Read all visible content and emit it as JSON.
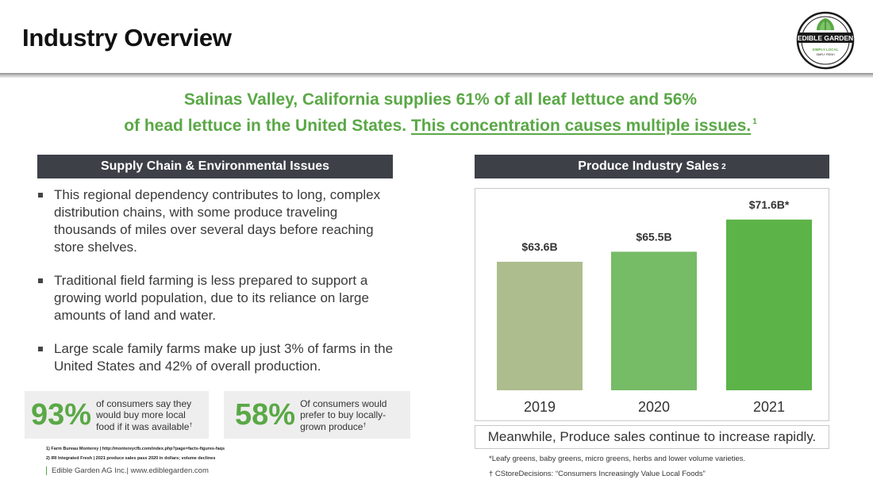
{
  "header": {
    "title": "Industry Overview",
    "logo": {
      "text": "EDIBLE GARDEN",
      "tagline": "SIMPLY LOCAL",
      "subtagline": "SIMPLY FRESH",
      "icon": "lettuce-leaf-icon"
    }
  },
  "headline": {
    "line1": "Salinas Valley, California supplies 61% of all leaf lettuce and 56%",
    "line2_start": "of head lettuce in the United States.",
    "line2_underlined": "This concentration causes multiple issues.",
    "footnote_ref": "1"
  },
  "left_panel": {
    "header": "Supply Chain & Environmental Issues",
    "bullets": [
      "This regional dependency contributes to long, complex distribution chains, with some produce traveling thousands of miles over several days before reaching store shelves.",
      "Traditional field farming is less prepared to support a growing world population, due to its reliance on large amounts of land and water.",
      "Large scale family farms make up just 3% of farms in the United States and 42% of overall production."
    ],
    "stats": [
      {
        "value": "93%",
        "text": "of consumers say they would buy more local food if it was available",
        "mark": "†"
      },
      {
        "value": "58%",
        "text": "Of consumers would prefer to buy locally-grown produce",
        "mark": "†"
      }
    ],
    "footnotes": [
      "1) Farm Bureau Monterey | http://montereycfb.com/index.php?page=facts-figures-faqs",
      "2) IRI Integrated Fresh | 2021 produce sales pass 2020 in dollars; volume declines"
    ],
    "company": "Edible Garden AG Inc.| www.ediblegarden.com"
  },
  "right_panel": {
    "header": "Produce Industry Sales",
    "header_ref": "2",
    "caption": "Meanwhile, Produce sales continue to increase rapidly.",
    "notes": [
      "*Leafy greens, baby greens, micro greens, herbs and lower volume varieties.",
      "† CStoreDecisions: “Consumers Increasingly Value Local Foods”"
    ]
  },
  "colors": {
    "accent_green": "#5aa846",
    "dark_header": "#3d4047",
    "bar_2019": "#adbd8d",
    "bar_2020": "#76bb66",
    "bar_2021": "#5cb347"
  },
  "chart_data": {
    "type": "bar",
    "title": "Produce Industry Sales",
    "categories": [
      "2019",
      "2020",
      "2021"
    ],
    "values": [
      63.6,
      65.5,
      71.6
    ],
    "labels": [
      "$63.6B",
      "$65.5B",
      "$71.6B*"
    ],
    "unit": "$B",
    "xlabel": "",
    "ylabel": "",
    "grid": false
  }
}
